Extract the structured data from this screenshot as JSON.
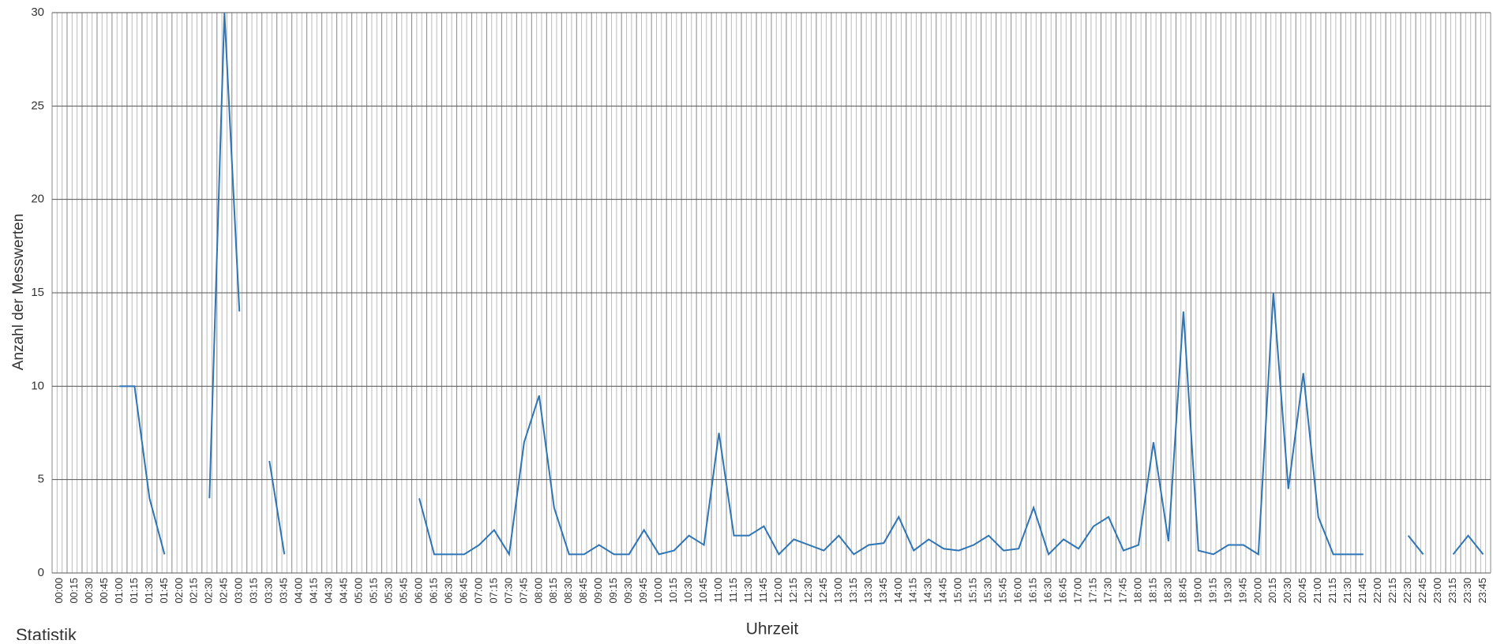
{
  "chart_data": {
    "type": "line",
    "y_label": "Anzahl der Messwerten",
    "x_label": "Uhrzeit",
    "footer": "Statistik",
    "categories": [
      "00:00",
      "00:15",
      "00:30",
      "00:45",
      "01:00",
      "01:15",
      "01:30",
      "01:45",
      "02:00",
      "02:15",
      "02:30",
      "02:45",
      "03:00",
      "03:15",
      "03:30",
      "03:45",
      "04:00",
      "04:15",
      "04:30",
      "04:45",
      "05:00",
      "05:15",
      "05:30",
      "05:45",
      "06:00",
      "06:15",
      "06:30",
      "06:45",
      "07:00",
      "07:15",
      "07:30",
      "07:45",
      "08:00",
      "08:15",
      "08:30",
      "08:45",
      "09:00",
      "09:15",
      "09:30",
      "09:45",
      "10:00",
      "10:15",
      "10:30",
      "10:45",
      "11:00",
      "11:15",
      "11:30",
      "11:45",
      "12:00",
      "12:15",
      "12:30",
      "12:45",
      "13:00",
      "13:15",
      "13:30",
      "13:45",
      "14:00",
      "14:15",
      "14:30",
      "14:45",
      "15:00",
      "15:15",
      "15:30",
      "15:45",
      "16:00",
      "16:15",
      "16:30",
      "16:45",
      "17:00",
      "17:15",
      "17:30",
      "17:45",
      "18:00",
      "18:15",
      "18:30",
      "18:45",
      "19:00",
      "19:15",
      "19:30",
      "19:45",
      "20:00",
      "20:15",
      "20:30",
      "20:45",
      "21:00",
      "21:15",
      "21:30",
      "21:45",
      "22:00",
      "22:15",
      "22:30",
      "22:45",
      "23:00",
      "23:15",
      "23:30",
      "23:45"
    ],
    "values": [
      null,
      null,
      null,
      null,
      10,
      10,
      4,
      1,
      null,
      null,
      4,
      30,
      14,
      null,
      6,
      1,
      null,
      null,
      null,
      null,
      null,
      null,
      null,
      null,
      4,
      1,
      1,
      1,
      1.5,
      2.3,
      1,
      7,
      9.5,
      3.5,
      1,
      1,
      1.5,
      1,
      1,
      2.3,
      1,
      1.2,
      2,
      1.5,
      7.5,
      2,
      2,
      2.5,
      1,
      1.8,
      1.5,
      1.2,
      2,
      1,
      1.5,
      1.6,
      3,
      1.2,
      1.8,
      1.3,
      1.2,
      1.5,
      2,
      1.2,
      1.3,
      3.5,
      1,
      1.8,
      1.3,
      2.5,
      3,
      1.2,
      1.5,
      7,
      1.7,
      14,
      1.2,
      1,
      1.5,
      1.5,
      1,
      15,
      4.5,
      10.7,
      3,
      1,
      1,
      1,
      null,
      null,
      2,
      1,
      null,
      1,
      2,
      1
    ],
    "color": "#2e75b6",
    "ylim": [
      0,
      30
    ],
    "yticks": [
      0,
      5,
      10,
      15,
      20,
      25,
      30
    ],
    "grid": true
  }
}
